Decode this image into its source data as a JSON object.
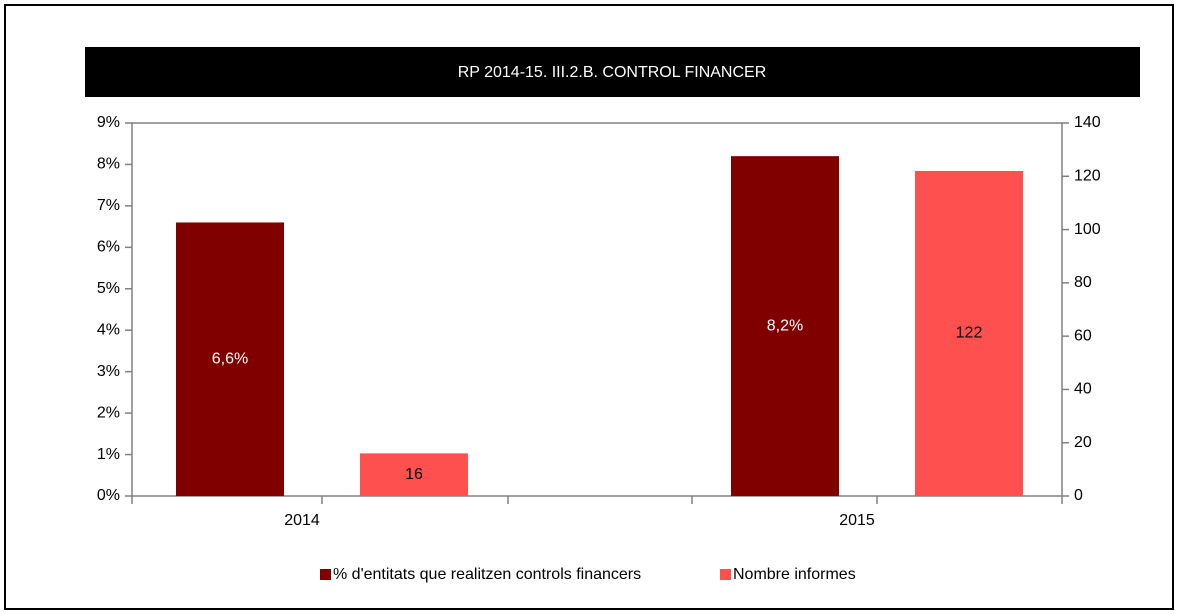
{
  "chart_data": {
    "type": "bar",
    "title": "RP 2014-15.  III.2.B. CONTROL FINANCER",
    "categories": [
      "2014",
      "2015"
    ],
    "series": [
      {
        "name": "% d'entitats que realitzen controls financers",
        "color": "#800000",
        "values": [
          6.6,
          8.2
        ],
        "value_labels": [
          "6,6%",
          "8,2%"
        ]
      },
      {
        "name": "Nombre informes",
        "color": "#ff5050",
        "axis": "y2",
        "values": [
          16,
          122
        ]
      }
    ],
    "ylim": [
      0,
      9
    ],
    "yticks": [
      {
        "value": 0,
        "label": "0%"
      },
      {
        "value": 1,
        "label": "1%"
      },
      {
        "value": 2,
        "label": "2%"
      },
      {
        "value": 3,
        "label": "3%"
      },
      {
        "value": 4,
        "label": "4%"
      },
      {
        "value": 5,
        "label": "5%"
      },
      {
        "value": 6,
        "label": "6%"
      },
      {
        "value": 7,
        "label": "7%"
      },
      {
        "value": 8,
        "label": "8%"
      },
      {
        "value": 9,
        "label": "9%"
      }
    ],
    "y2lim": [
      0,
      140
    ],
    "y2ticks": [
      0,
      20,
      40,
      60,
      80,
      100,
      120,
      140
    ],
    "legend": "bottom"
  }
}
